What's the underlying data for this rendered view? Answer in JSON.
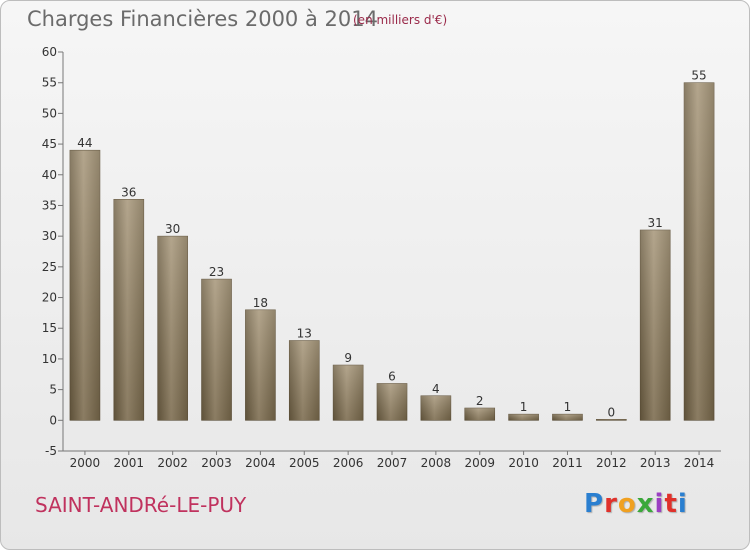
{
  "chart_data": {
    "type": "bar",
    "title": "Charges Financières 2000 à 2014",
    "subtitle": "(en milliers d'€)",
    "categories": [
      "2000",
      "2001",
      "2002",
      "2003",
      "2004",
      "2005",
      "2006",
      "2007",
      "2008",
      "2009",
      "2010",
      "2011",
      "2012",
      "2013",
      "2014"
    ],
    "values": [
      44,
      36,
      30,
      23,
      18,
      13,
      9,
      6,
      4,
      2,
      1,
      1,
      0,
      31,
      55
    ],
    "ylim": [
      -5,
      60
    ],
    "yticks": [
      -5,
      0,
      5,
      10,
      15,
      20,
      25,
      30,
      35,
      40,
      45,
      50,
      55,
      60
    ],
    "grid": false,
    "bar_color": "#8b7a5a"
  },
  "footer": {
    "commune": "SAINT-ANDRé-LE-PUY",
    "logo_letters": [
      "P",
      "r",
      "o",
      "x",
      "i",
      "t",
      "i"
    ]
  }
}
